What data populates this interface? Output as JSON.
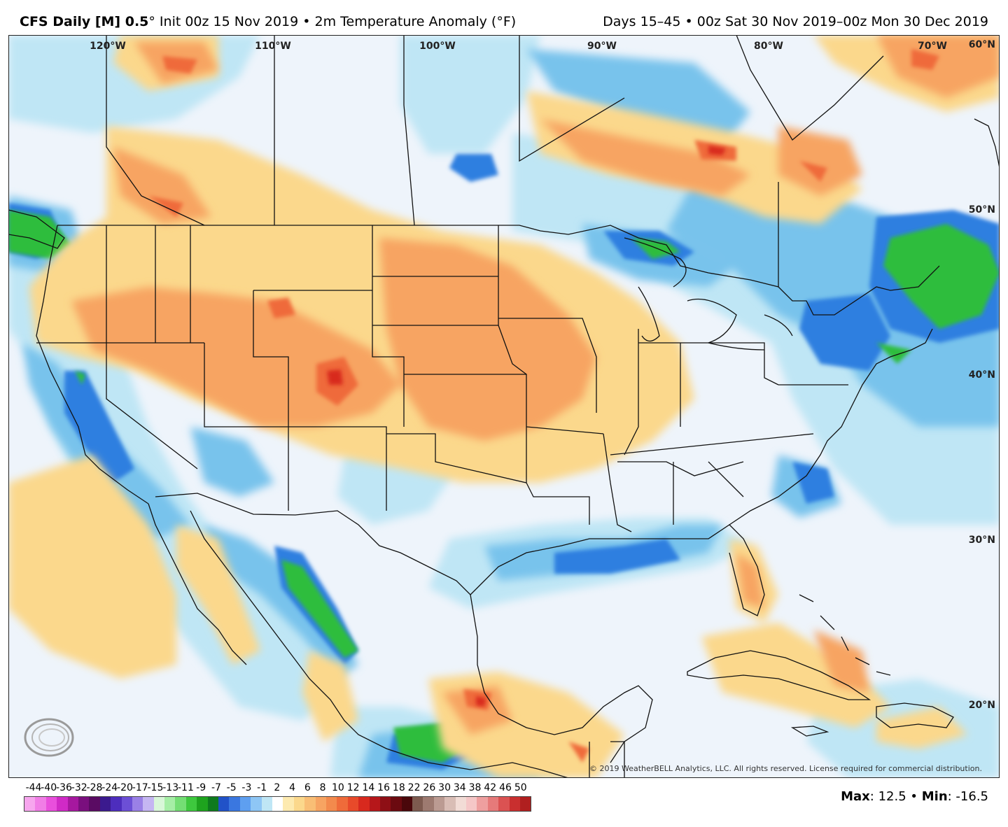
{
  "header": {
    "model": "CFS Daily [M] 0.5",
    "degree": "°",
    "init": " Init 00z 15 Nov 2019 • 2m Temperature Anomaly (°F)",
    "valid": "Days 15–45 • 00z Sat 30 Nov 2019–00z Mon 30 Dec 2019"
  },
  "map": {
    "lon_labels": [
      "120°W",
      "110°W",
      "100°W",
      "90°W",
      "80°W",
      "70°W"
    ],
    "lat_labels": [
      "60°N",
      "50°N",
      "40°N",
      "30°N",
      "20°N"
    ],
    "copyright": "© 2019 WeatherBELL Analytics, LLC. All rights reserved. License required for commercial distribution.",
    "logo_text": "WeatherBELL",
    "colors": {
      "ocean_base": "#eef4fb",
      "warm_light": "#fbd88c",
      "warm_mid": "#f7a462",
      "warm_strong": "#ef6b3a",
      "warm_hot": "#d8291e",
      "cool_light": "#bfe6f5",
      "cool_mid": "#78c3ec",
      "cool_strong": "#2f7fe0",
      "cool_deep": "#1a4fcf",
      "green": "#2ebd3c"
    }
  },
  "legend": {
    "labels": [
      "-44",
      "-40",
      "-36",
      "-32",
      "-28",
      "-24",
      "-20",
      "-17",
      "-15",
      "-13",
      "-11",
      "-9",
      "-7",
      "-5",
      "-3",
      "-1",
      "2",
      "4",
      "6",
      "8",
      "10",
      "12",
      "14",
      "16",
      "18",
      "22",
      "26",
      "30",
      "34",
      "38",
      "42",
      "46",
      "50"
    ],
    "colors": [
      "#f7a6ee",
      "#f17de6",
      "#e94fdc",
      "#d02ac6",
      "#a6189f",
      "#7a0f7e",
      "#5a0b63",
      "#3b1a8e",
      "#4d2dbd",
      "#6c4fd6",
      "#9a80e6",
      "#c5b6f2",
      "#d9f7d9",
      "#a6eea6",
      "#74de74",
      "#3ec83e",
      "#1ea31e",
      "#0e7a1e",
      "#2152c8",
      "#3a77e0",
      "#5e9ff0",
      "#8ec6f5",
      "#bfe6f5",
      "#ffffff",
      "#fdeab0",
      "#fbd88c",
      "#f9be75",
      "#f7a462",
      "#f38a4d",
      "#ef6b3a",
      "#e84a2a",
      "#d8291e",
      "#b6171a",
      "#8e0f15",
      "#6b0a10",
      "#4a070b",
      "#7d5a4f",
      "#9d7a70",
      "#bb9b92",
      "#d9bdb5",
      "#f2dcd6",
      "#f5c7c7",
      "#ee9f9f",
      "#e67a7a",
      "#db5252",
      "#c92f2f",
      "#b01f1f"
    ]
  },
  "stats": {
    "max_label": "Max",
    "max_value": ": 12.5 • ",
    "min_label": "Min",
    "min_value": ": -16.5"
  }
}
